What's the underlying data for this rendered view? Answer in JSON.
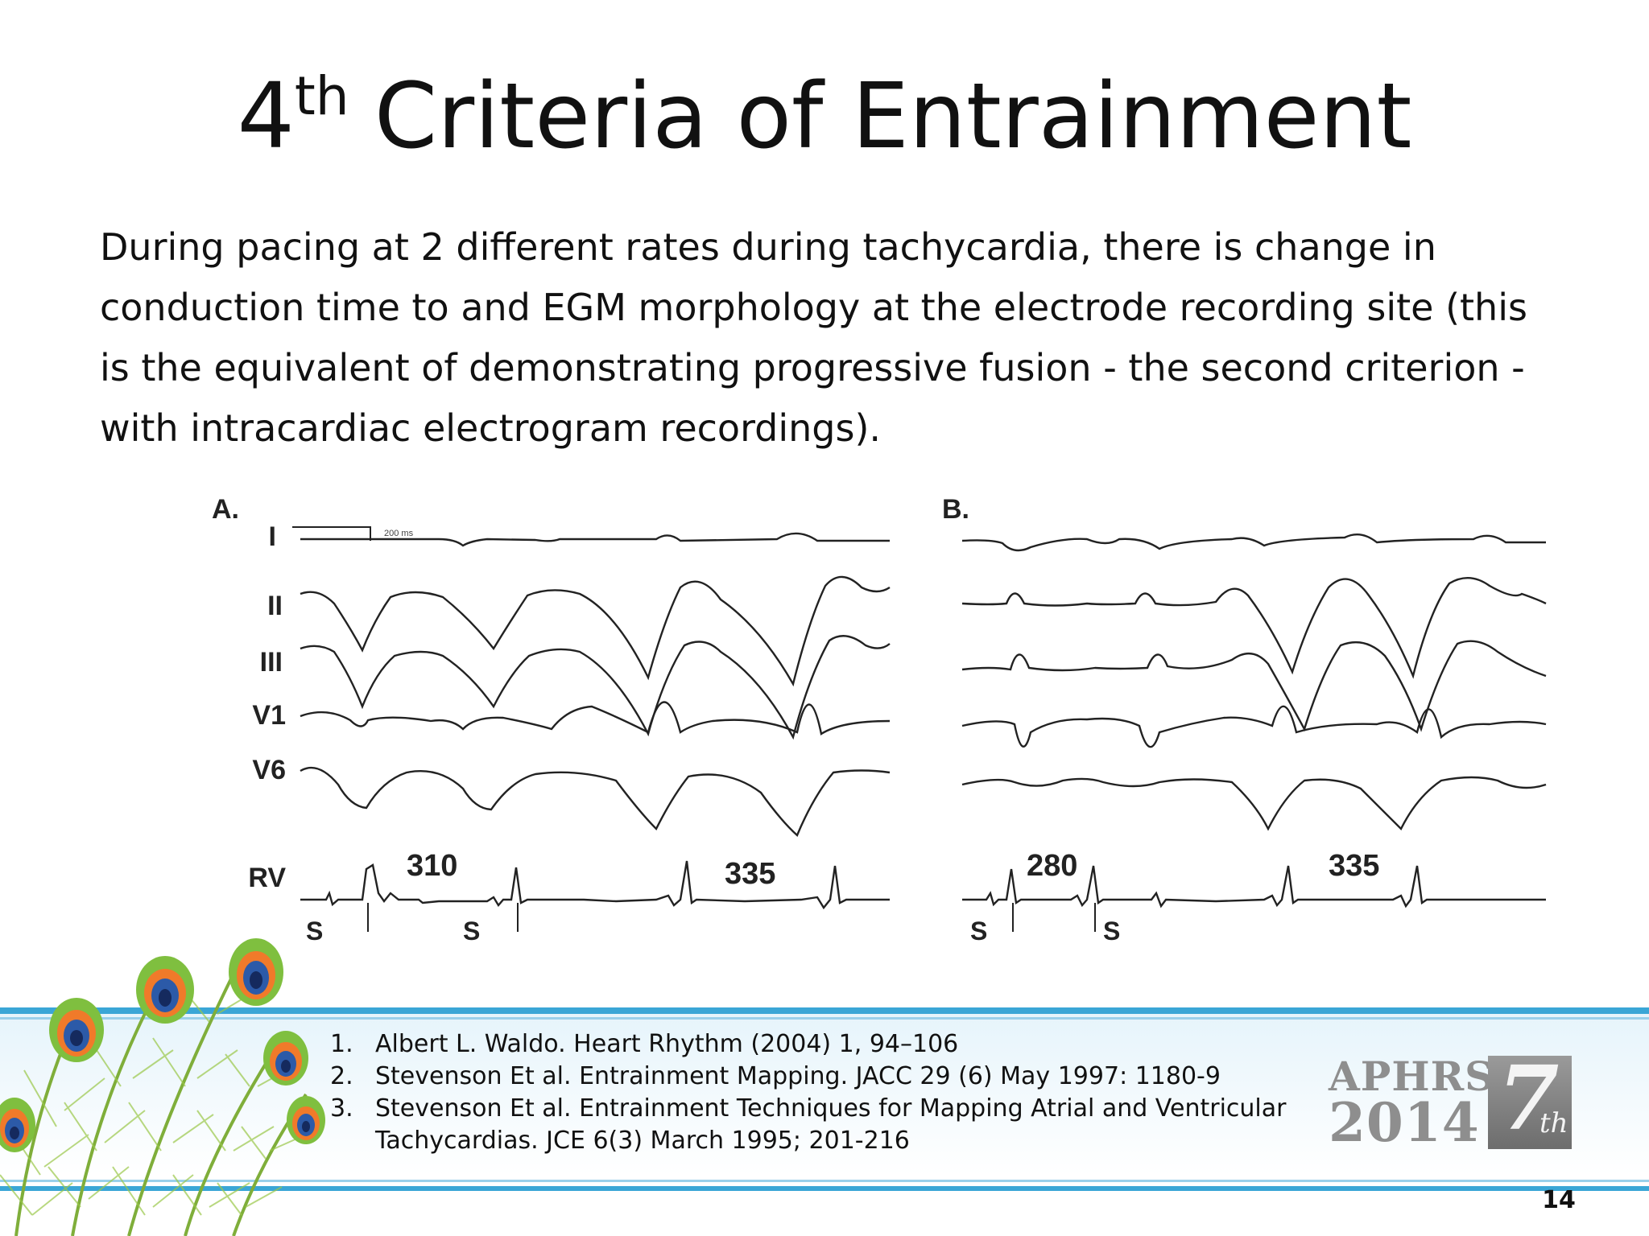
{
  "slide": {
    "title_main": "4",
    "title_sup": "th",
    "title_rest": "Criteria of Entrainment",
    "body_lines": [
      "During pacing at 2 different rates during tachycardia, there is change in",
      "conduction time to and EGM morphology at the electrode recording site (this",
      "is the equivalent of demonstrating progressive fusion - the second criterion -",
      "with intracardiac electrogram recordings)."
    ],
    "page_number": "14"
  },
  "figure": {
    "panel_a_label": "A.",
    "panel_b_label": "B.",
    "lead_labels": [
      "I",
      "II",
      "III",
      "V1",
      "V6",
      "RV"
    ],
    "scale_text": "200 ms",
    "stim_label": "S",
    "panel_a_intervals": [
      "310",
      "335"
    ],
    "panel_b_intervals": [
      "280",
      "335"
    ]
  },
  "references": [
    {
      "num": "1.",
      "text": "Albert L. Waldo. Heart Rhythm (2004) 1, 94–106"
    },
    {
      "num": "2.",
      "text": "Stevenson Et al. Entrainment Mapping. JACC 29 (6) May 1997: 1180-9"
    },
    {
      "num": "3.",
      "text": "Stevenson Et al. Entrainment Techniques for Mapping Atrial and Ventricular"
    },
    {
      "num": "",
      "text": "Tachycardias. JCE 6(3) March 1995; 201-216"
    }
  ],
  "logo": {
    "line1": "APHRS",
    "line2": "2014",
    "edition_num": "7",
    "edition_suffix": "th"
  },
  "colors": {
    "band_blue": "#3aa6d6",
    "band_light": "#dff1fa",
    "logo_gray": "#8e8e8e",
    "trace": "#222222"
  }
}
